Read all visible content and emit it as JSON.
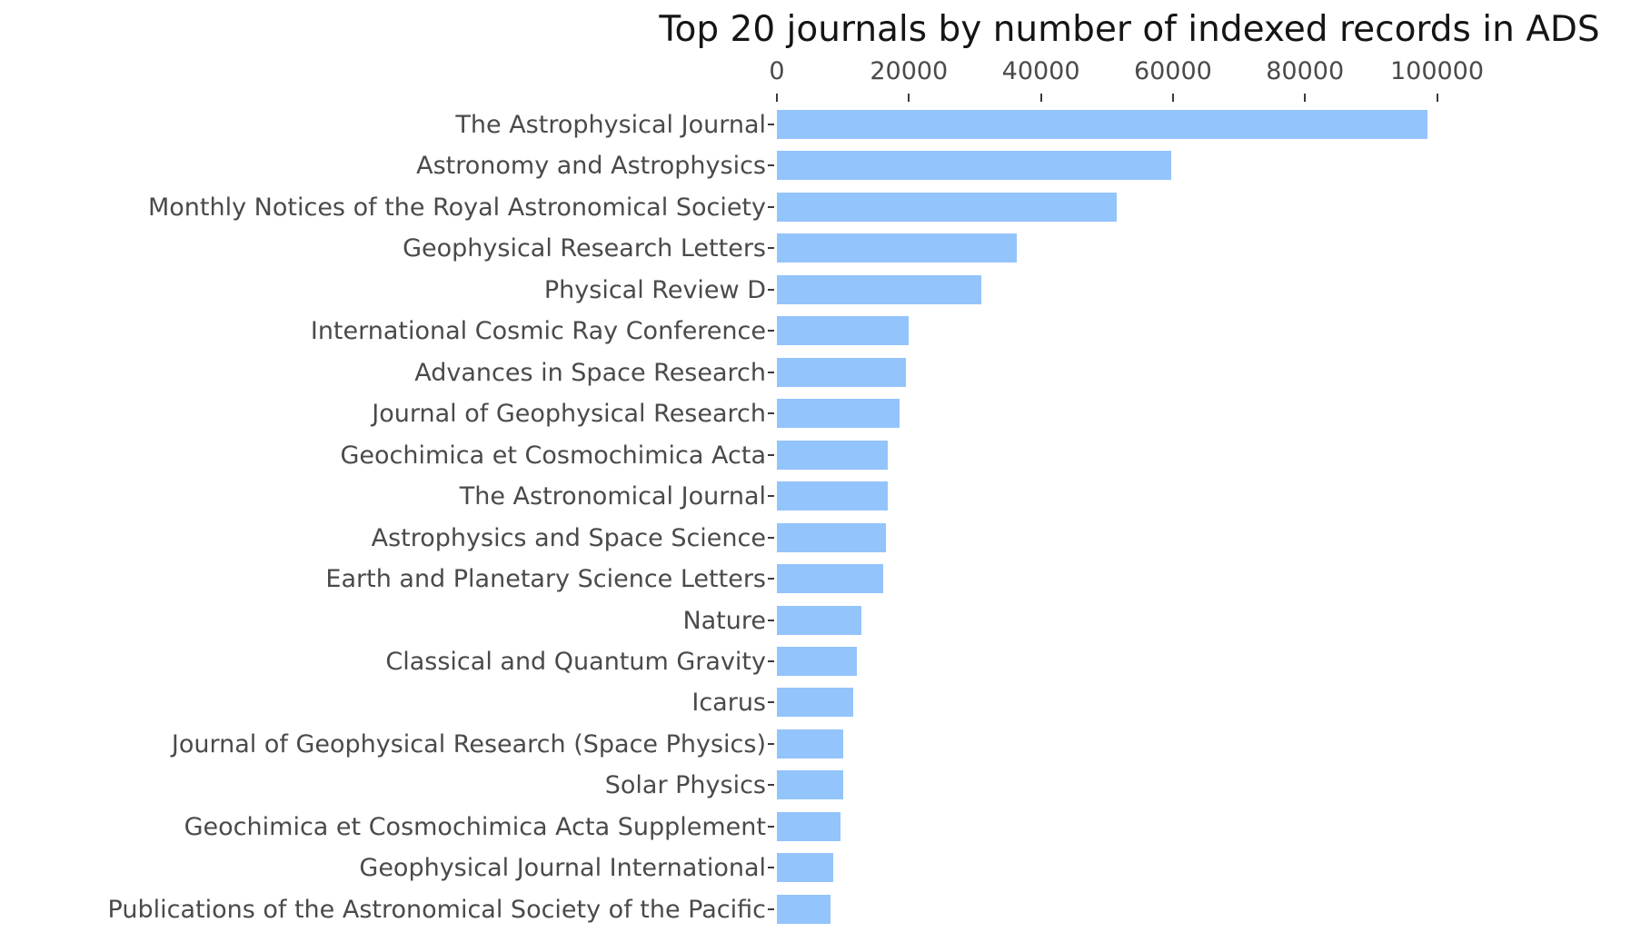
{
  "chart_data": {
    "type": "bar",
    "orientation": "horizontal",
    "title": "Top 20 journals by number of indexed records in ADS",
    "xlabel": "",
    "ylabel": "",
    "x_ticks": [
      0,
      20000,
      40000,
      60000,
      80000,
      100000
    ],
    "xlim": [
      0,
      106700
    ],
    "grid": false,
    "legend": "none",
    "bar_color": "#93c4fc",
    "categories": [
      "The Astrophysical Journal",
      "Astronomy and Astrophysics",
      "Monthly Notices of the Royal Astronomical Society",
      "Geophysical Research Letters",
      "Physical Review D",
      "International Cosmic Ray Conference",
      "Advances in Space Research",
      "Journal of Geophysical Research",
      "Geochimica et Cosmochimica Acta",
      "The Astronomical Journal",
      "Astrophysics and Space Science",
      "Earth and Planetary Science Letters",
      "Nature",
      "Classical and Quantum Gravity",
      "Icarus",
      "Journal of Geophysical Research (Space Physics)",
      "Solar Physics",
      "Geochimica et Cosmochimica Acta Supplement",
      "Geophysical Journal International",
      "Publications of the Astronomical Society of the Pacific"
    ],
    "values": [
      98600,
      59800,
      51500,
      36300,
      31000,
      20000,
      19500,
      18600,
      16800,
      16800,
      16500,
      16100,
      12800,
      12100,
      11600,
      10000,
      10000,
      9600,
      8600,
      8100
    ]
  },
  "colors": {
    "background": "#ffffff",
    "bar": "#93c4fc",
    "title_text": "#151515",
    "tick_label_text": "#4a4a4a",
    "tick_mark": "#3a3a3a"
  }
}
